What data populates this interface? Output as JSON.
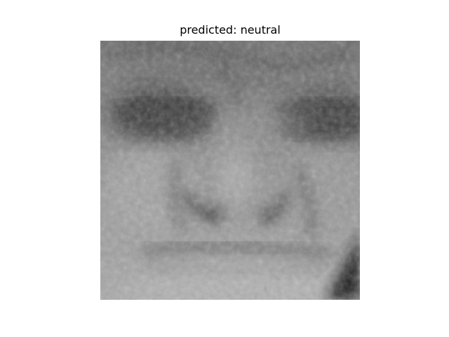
{
  "figure": {
    "title": "predicted: neutral"
  },
  "image": {
    "subject": "close-up grayscale face of an elderly person",
    "colormap": "gray"
  }
}
